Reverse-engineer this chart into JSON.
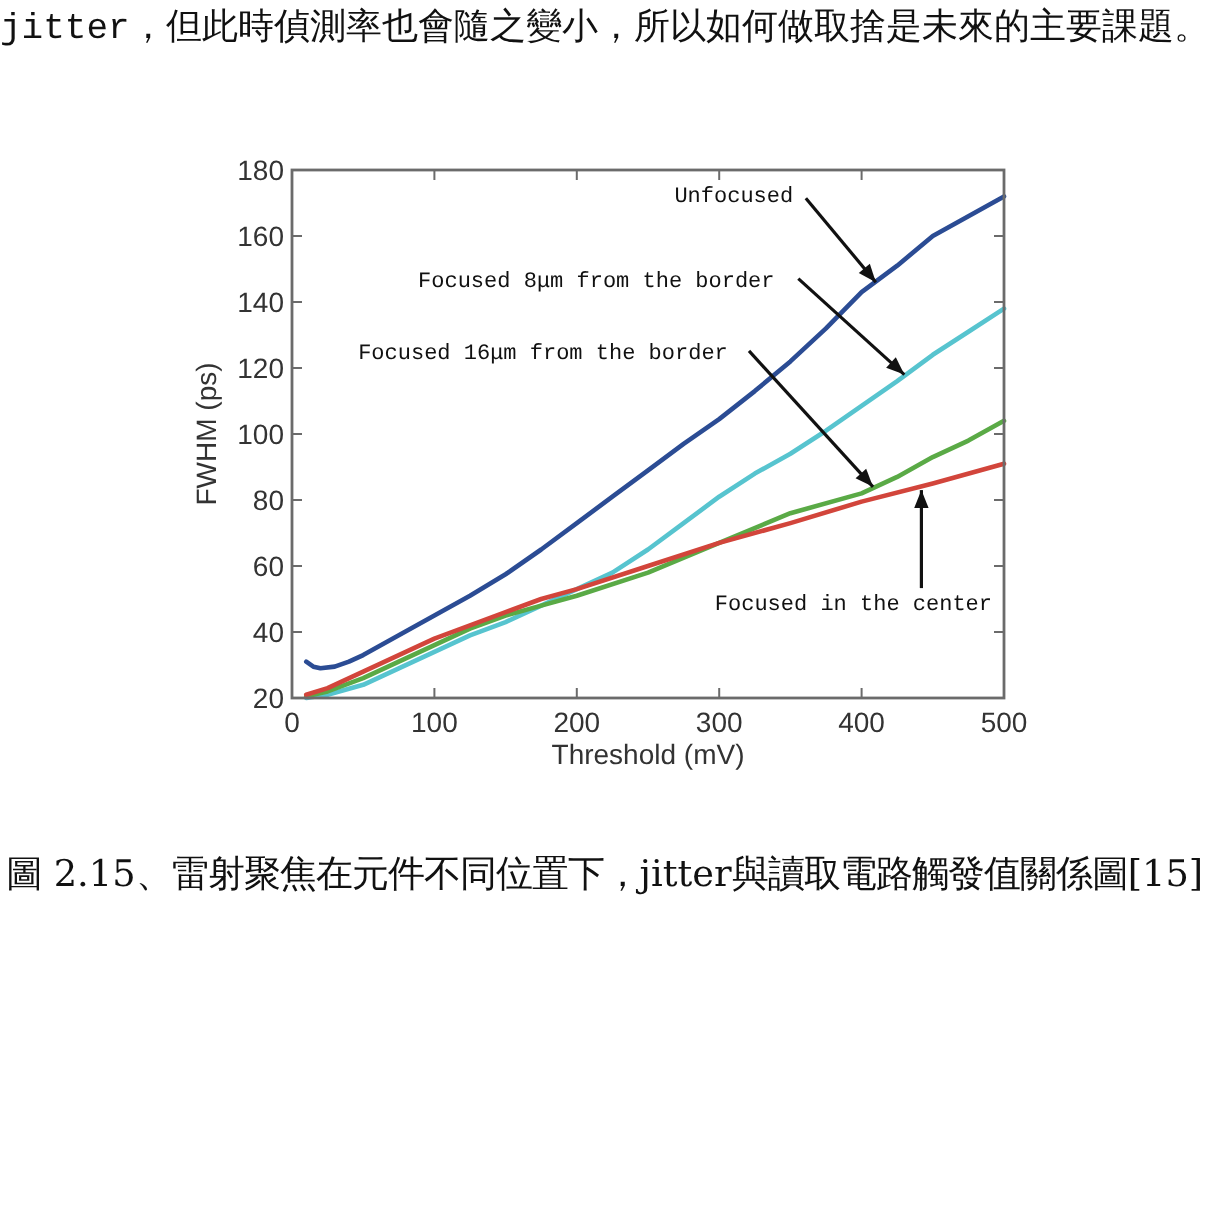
{
  "chart_data": {
    "type": "line",
    "xlabel": "Threshold (mV)",
    "ylabel": "FWHM (ps)",
    "xlim": [
      0,
      500
    ],
    "ylim": [
      20,
      180
    ],
    "xticks": [
      0,
      100,
      200,
      300,
      400,
      500
    ],
    "yticks": [
      20,
      40,
      60,
      80,
      100,
      120,
      140,
      160,
      180
    ],
    "series": [
      {
        "color": "#2b4c94",
        "x": [
          10,
          15,
          20,
          30,
          40,
          50,
          75,
          100,
          125,
          150,
          175,
          200,
          225,
          250,
          275,
          300,
          325,
          350,
          375,
          400,
          425,
          450,
          475,
          500
        ],
        "values": [
          31,
          29.5,
          29,
          29.5,
          31,
          33,
          39,
          45,
          51,
          57.5,
          65,
          73,
          81,
          89,
          97,
          104.5,
          113,
          122,
          132,
          143,
          151,
          160,
          166,
          172
        ]
      },
      {
        "color": "#57c4cf",
        "x": [
          10,
          25,
          50,
          75,
          100,
          125,
          150,
          175,
          200,
          225,
          250,
          275,
          300,
          325,
          350,
          375,
          400,
          425,
          450,
          475,
          500
        ],
        "values": [
          20,
          21,
          24,
          29,
          34,
          39,
          43,
          48,
          53,
          58,
          65,
          73,
          81,
          88,
          94,
          101,
          108.5,
          116,
          124,
          131,
          138
        ]
      },
      {
        "color": "#5aaa46",
        "x": [
          10,
          25,
          50,
          75,
          100,
          125,
          150,
          175,
          200,
          250,
          300,
          350,
          400,
          425,
          450,
          475,
          500
        ],
        "values": [
          20.5,
          22,
          26,
          31,
          36,
          41,
          45,
          48,
          51,
          58,
          67,
          76,
          82,
          87,
          93,
          98,
          104
        ]
      },
      {
        "color": "#d2453b",
        "x": [
          10,
          25,
          50,
          75,
          100,
          125,
          150,
          175,
          200,
          250,
          300,
          350,
          400,
          450,
          500
        ],
        "values": [
          21,
          23,
          28,
          33,
          38,
          42,
          46,
          50,
          53,
          60,
          67,
          73,
          79.5,
          85,
          91
        ]
      }
    ],
    "annotations": [
      "jitter，但此時偵測率也會隨之變小，所以如何做取捨是未來的主要課題。",
      {
        "text": "Unfocused",
        "x": 410,
        "y": 146
      },
      {
        "text": "Focused 8μm from the border",
        "x": 430,
        "y": 118
      },
      {
        "text": "Focused 16μm from the border",
        "x": 408,
        "y": 84
      },
      {
        "text": "Focused in the center",
        "x": 442,
        "y": 83
      },
      "圖 2.15、雷射聚焦在元件不同位置下，jitter與讀取電路觸發值關係圖[15]"
    ]
  }
}
